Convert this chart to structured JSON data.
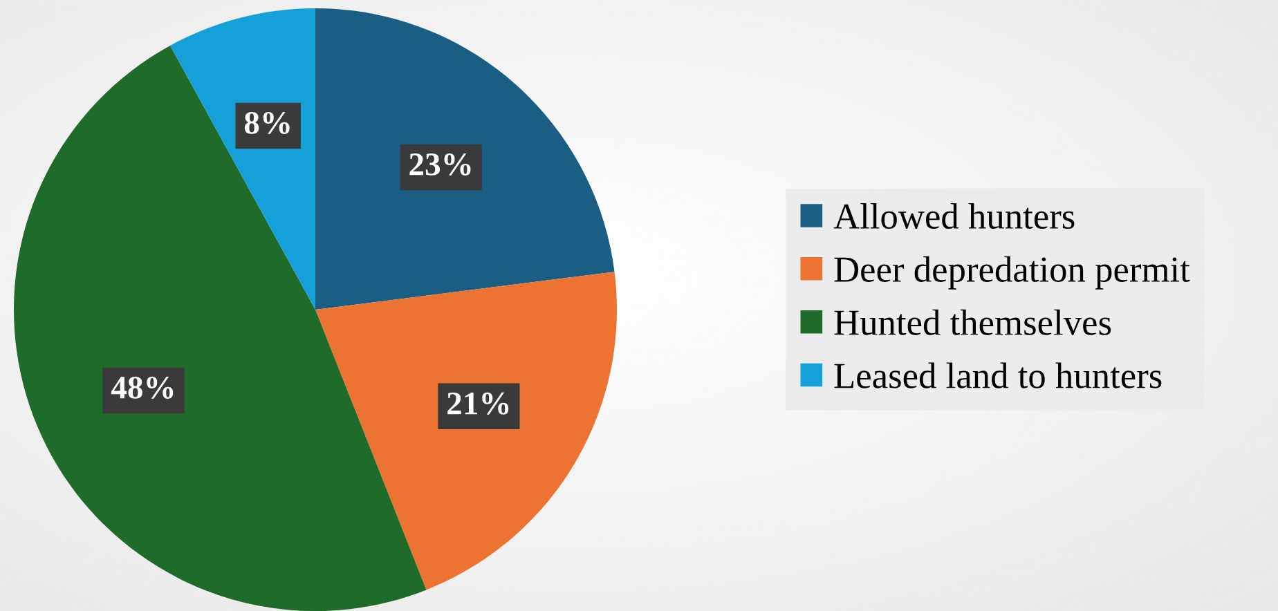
{
  "chart_data": {
    "type": "pie",
    "categories": [
      "Allowed hunters",
      "Deer depredation permit",
      "Hunted themselves",
      "Leased land to hunters"
    ],
    "values": [
      23,
      21,
      48,
      8
    ],
    "colors": [
      "#1b5e83",
      "#ec7331",
      "#1e6b2a",
      "#16a0da"
    ],
    "value_labels": [
      "23%",
      "21%",
      "48%",
      "8%"
    ],
    "legend": "right"
  }
}
